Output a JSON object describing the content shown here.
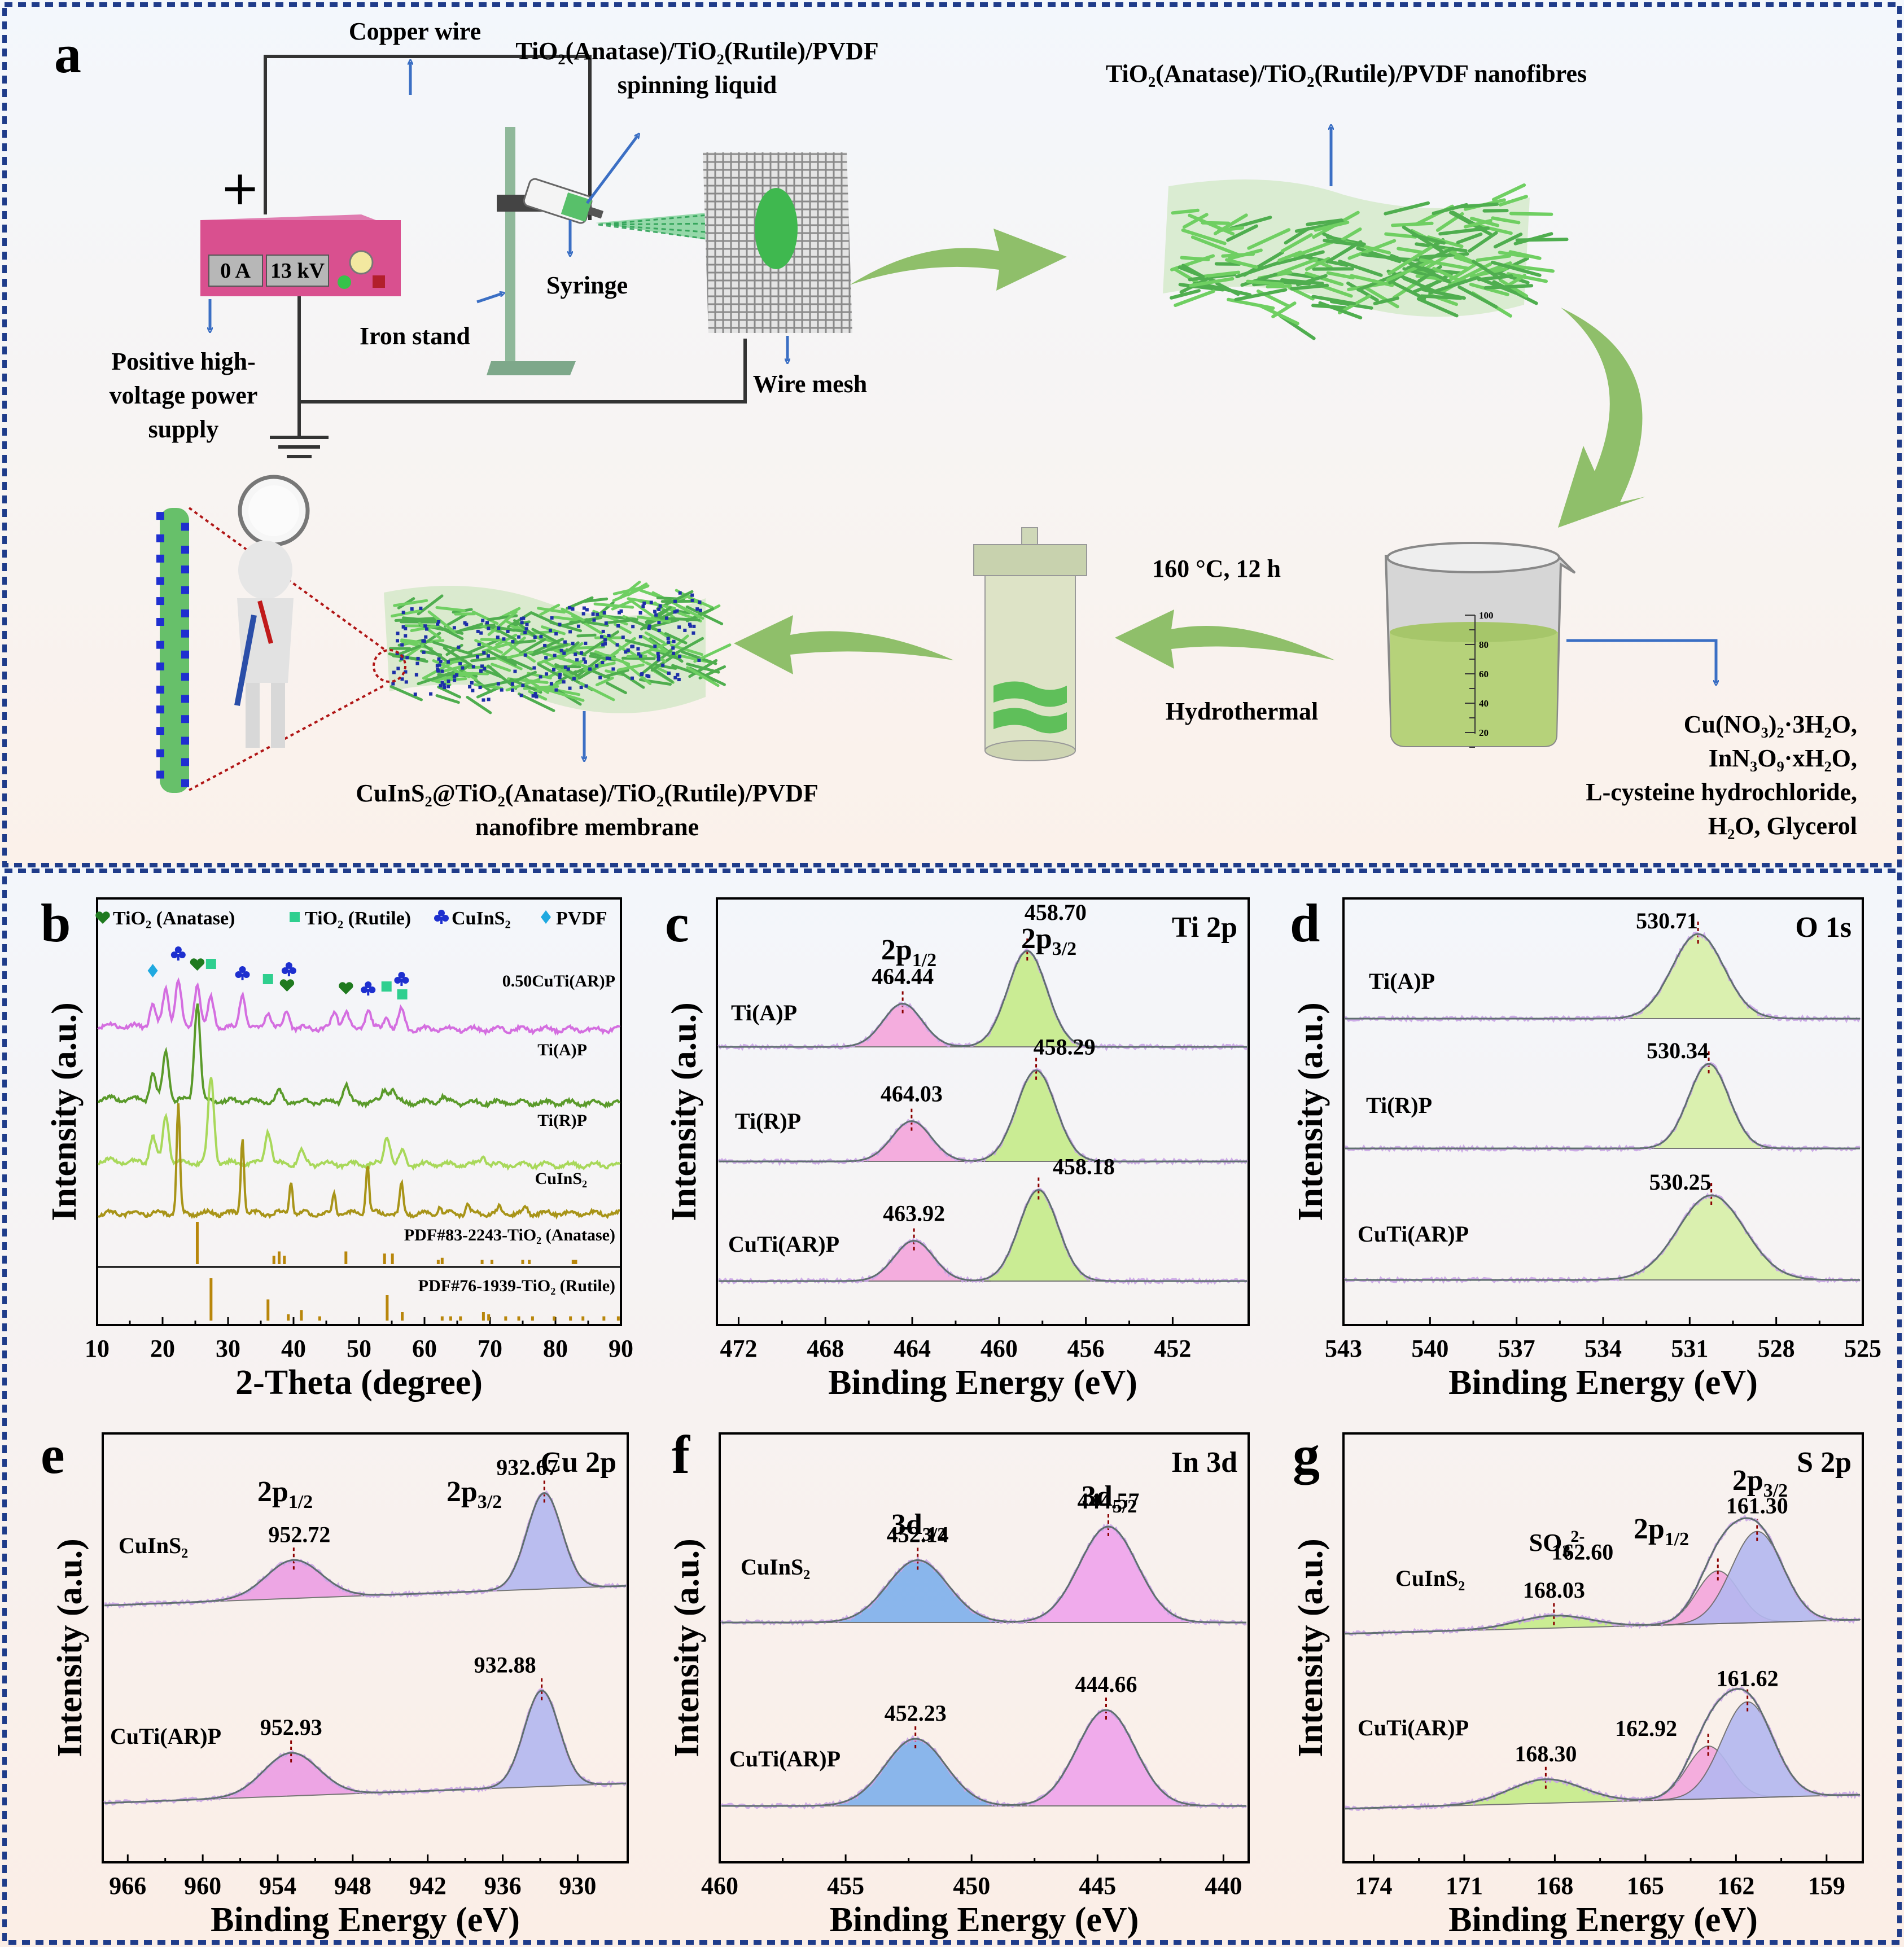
{
  "panel_a": {
    "letter": "a",
    "copper_wire": "Copper  wire",
    "spinning_liquid_l1": "TiO₂(Anatase)/TiO₂(Rutile)/PVDF",
    "spinning_liquid_l2": "spinning  liquid",
    "nanofibres": "TiO₂(Anatase)/TiO₂(Rutile)/PVDF nanofibres",
    "plus": "+",
    "current": "0 A",
    "voltage": "13 kV",
    "syringe": "Syringe",
    "iron_stand": "Iron stand",
    "wire_mesh": "Wire mesh",
    "power_l1": "Positive high-",
    "power_l2": "voltage power",
    "power_l3": "supply",
    "condition": "160 °C, 12 h",
    "hydrothermal": "Hydrothermal",
    "membrane_l1": "CuInS₂@TiO₂(Anatase)/TiO₂(Rutile)/PVDF",
    "membrane_l2": "nanofibre membrane",
    "reagents": [
      "Cu(NO₃)₂·3H₂O,",
      "InN₃O₉·xH₂O,",
      "L-cysteine hydrochloride,",
      "H₂O, Glycerol"
    ],
    "beaker_ticks": [
      "100",
      "80",
      "60",
      "40",
      "20"
    ],
    "colors": {
      "arrow_green": "#8fbf6a",
      "fiber": "#5fbf5a",
      "box": "#d9508f",
      "blue": "#3b6fc4"
    }
  },
  "chart_data": [
    {
      "panel": "b",
      "type": "line",
      "xlabel": "2-Theta (degree)",
      "ylabel": "Intensity (a.u.)",
      "xlim": [
        10,
        90
      ],
      "xticks": [
        "10",
        "20",
        "30",
        "40",
        "50",
        "60",
        "70",
        "80",
        "90"
      ],
      "legend": [
        "TiO₂ (Anatase)",
        "TiO₂ (Rutile)",
        "CuInS₂",
        "PVDF"
      ],
      "series": [
        {
          "name": "0.50CuTi(AR)P",
          "color": "#d46ee0",
          "peaks": [
            [
              18.5,
              0.5
            ],
            [
              20.5,
              0.9
            ],
            [
              22.4,
              1.1
            ],
            [
              25.3,
              1.0
            ],
            [
              27.4,
              0.7
            ],
            [
              32.2,
              0.8
            ],
            [
              36.1,
              0.4
            ],
            [
              39.0,
              0.4
            ],
            [
              46.3,
              0.4
            ],
            [
              48.0,
              0.4
            ],
            [
              51.4,
              0.45
            ],
            [
              54.2,
              0.3
            ],
            [
              56.5,
              0.45
            ]
          ]
        },
        {
          "name": "Ti(A)P",
          "color": "#5a9a2a",
          "peaks": [
            [
              18.5,
              0.6
            ],
            [
              20.5,
              1.2
            ],
            [
              25.3,
              2.3
            ],
            [
              37.8,
              0.25
            ],
            [
              48.0,
              0.4
            ],
            [
              53.9,
              0.3
            ],
            [
              55.1,
              0.3
            ],
            [
              62.7,
              0.15
            ]
          ]
        },
        {
          "name": "Ti(R)P",
          "color": "#a8d85a",
          "peaks": [
            [
              18.5,
              0.6
            ],
            [
              20.5,
              1.1
            ],
            [
              27.4,
              2.0
            ],
            [
              36.1,
              0.8
            ],
            [
              41.2,
              0.3
            ],
            [
              54.3,
              0.7
            ],
            [
              56.6,
              0.3
            ],
            [
              69.0,
              0.2
            ]
          ]
        },
        {
          "name": "CuInS₂",
          "color": "#a89418",
          "peaks": [
            [
              22.4,
              2.6
            ],
            [
              32.2,
              1.8
            ],
            [
              39.6,
              0.8
            ],
            [
              46.2,
              0.5
            ],
            [
              51.3,
              1.2
            ],
            [
              56.5,
              0.7
            ],
            [
              62.3,
              0.2
            ],
            [
              66.6,
              0.2
            ],
            [
              71.5,
              0.15
            ],
            [
              75.5,
              0.15
            ]
          ]
        }
      ],
      "reference": [
        {
          "name": "PDF#83-2243-TiO₂ (Anatase)",
          "color": "#b8860b",
          "lines": [
            [
              25.3,
              1.0
            ],
            [
              37.0,
              0.2
            ],
            [
              37.8,
              0.3
            ],
            [
              38.6,
              0.2
            ],
            [
              48.0,
              0.3
            ],
            [
              53.9,
              0.25
            ],
            [
              55.1,
              0.25
            ],
            [
              62.1,
              0.1
            ],
            [
              62.7,
              0.15
            ],
            [
              68.8,
              0.1
            ],
            [
              70.3,
              0.1
            ],
            [
              75.0,
              0.1
            ],
            [
              76.0,
              0.1
            ],
            [
              82.7,
              0.1
            ],
            [
              83.1,
              0.1
            ]
          ]
        },
        {
          "name": "PDF#76-1939-TiO₂ (Rutile)",
          "color": "#b8860b",
          "lines": [
            [
              27.4,
              1.0
            ],
            [
              36.1,
              0.5
            ],
            [
              39.2,
              0.15
            ],
            [
              41.2,
              0.25
            ],
            [
              44.0,
              0.1
            ],
            [
              54.3,
              0.6
            ],
            [
              56.6,
              0.2
            ],
            [
              62.7,
              0.1
            ],
            [
              64.0,
              0.1
            ],
            [
              65.5,
              0.1
            ],
            [
              69.0,
              0.2
            ],
            [
              69.8,
              0.15
            ],
            [
              72.4,
              0.1
            ],
            [
              74.4,
              0.1
            ],
            [
              76.5,
              0.1
            ],
            [
              79.8,
              0.1
            ],
            [
              82.3,
              0.1
            ],
            [
              84.2,
              0.1
            ],
            [
              87.4,
              0.1
            ],
            [
              89.6,
              0.1
            ]
          ]
        }
      ]
    },
    {
      "panel": "c",
      "type": "line",
      "title": "Ti 2p",
      "xlabel": "Binding Energy (eV)",
      "ylabel": "Intensity (a.u.)",
      "xlim": [
        473,
        448.5
      ],
      "xticks": [
        "472",
        "468",
        "464",
        "460",
        "456",
        "452"
      ],
      "series": [
        {
          "name": "Ti(A)P",
          "peaks": [
            {
              "label": "464.44",
              "center": 464.44,
              "h": 0.45,
              "fill": "#f4a6dc"
            },
            {
              "label": "458.70",
              "center": 458.7,
              "h": 1.0,
              "fill": "#c6ec8a"
            }
          ]
        },
        {
          "name": "Ti(R)P",
          "peaks": [
            {
              "label": "464.03",
              "center": 464.03,
              "h": 0.42,
              "fill": "#f4a6dc"
            },
            {
              "label": "458.29",
              "center": 458.29,
              "h": 0.95,
              "fill": "#c6ec8a"
            }
          ]
        },
        {
          "name": "CuTi(AR)P",
          "peaks": [
            {
              "label": "463.92",
              "center": 463.92,
              "h": 0.42,
              "fill": "#f4a6dc"
            },
            {
              "label": "458.18",
              "center": 458.18,
              "h": 0.95,
              "fill": "#c6ec8a"
            }
          ]
        }
      ],
      "annotations": [
        "2p1/2",
        "2p3/2"
      ]
    },
    {
      "panel": "d",
      "type": "line",
      "title": "O 1s",
      "xlabel": "Binding Energy (eV)",
      "ylabel": "Intensity (a.u.)",
      "xlim": [
        543,
        525
      ],
      "xticks": [
        "543",
        "540",
        "537",
        "534",
        "531",
        "528",
        "525"
      ],
      "series": [
        {
          "name": "Ti(A)P",
          "peaks": [
            {
              "label": "530.71",
              "center": 530.71,
              "h": 1.0,
              "fill": "#d8f0a8"
            }
          ]
        },
        {
          "name": "Ti(R)P",
          "peaks": [
            {
              "label": "530.34",
              "center": 530.34,
              "h": 1.0,
              "fill": "#d8f0a8"
            }
          ]
        },
        {
          "name": "CuTi(AR)P",
          "peaks": [
            {
              "label": "530.25",
              "center": 530.25,
              "h": 1.0,
              "fill": "#d8f0a8"
            }
          ]
        }
      ]
    },
    {
      "panel": "e",
      "type": "line",
      "title": "Cu 2p",
      "xlabel": "Binding Energy (eV)",
      "ylabel": "Intensity (a.u.)",
      "xlim": [
        968,
        926
      ],
      "xticks": [
        "966",
        "960",
        "954",
        "948",
        "942",
        "936",
        "930"
      ],
      "series": [
        {
          "name": "CuInS₂",
          "peaks": [
            {
              "label": "952.72",
              "center": 952.72,
              "h": 0.4,
              "fill": "#ec9ee4"
            },
            {
              "label": "932.67",
              "center": 932.67,
              "h": 1.0,
              "fill": "#b4b8f0"
            }
          ]
        },
        {
          "name": "CuTi(AR)P",
          "peaks": [
            {
              "label": "952.93",
              "center": 952.93,
              "h": 0.45,
              "fill": "#ec9ee4"
            },
            {
              "label": "932.88",
              "center": 932.88,
              "h": 1.0,
              "fill": "#b4b8f0"
            }
          ]
        }
      ],
      "annotations": [
        "2p1/2",
        "2p3/2"
      ]
    },
    {
      "panel": "f",
      "type": "line",
      "title": "In 3d",
      "xlabel": "Binding Energy (eV)",
      "ylabel": "Intensity (a.u.)",
      "xlim": [
        460,
        439
      ],
      "xticks": [
        "460",
        "455",
        "450",
        "445",
        "440"
      ],
      "series": [
        {
          "name": "CuInS₂",
          "peaks": [
            {
              "label": "452.14",
              "center": 452.14,
              "h": 0.65,
              "fill": "#7eb0ec"
            },
            {
              "label": "444.57",
              "center": 444.57,
              "h": 1.0,
              "fill": "#f0a4ec"
            }
          ]
        },
        {
          "name": "CuTi(AR)P",
          "peaks": [
            {
              "label": "452.23",
              "center": 452.23,
              "h": 0.7,
              "fill": "#7eb0ec"
            },
            {
              "label": "444.66",
              "center": 444.66,
              "h": 1.0,
              "fill": "#f0a4ec"
            }
          ]
        }
      ],
      "annotations": [
        "3d3/2",
        "3d5/2"
      ]
    },
    {
      "panel": "g",
      "type": "line",
      "title": "S 2p",
      "xlabel": "Binding Energy (eV)",
      "ylabel": "Intensity (a.u.)",
      "xlim": [
        175,
        157.8
      ],
      "xticks": [
        "174",
        "171",
        "168",
        "165",
        "162",
        "159"
      ],
      "series": [
        {
          "name": "CuInS₂",
          "peaks": [
            {
              "label": "168.03",
              "center": 168.03,
              "h": 0.13,
              "fill": "#c6ec8a"
            },
            {
              "label": "162.60",
              "center": 162.6,
              "h": 0.55,
              "fill": "#f4a6dc"
            },
            {
              "label": "161.30",
              "center": 161.3,
              "h": 0.95,
              "fill": "#b4b8f0"
            }
          ]
        },
        {
          "name": "CuTi(AR)P",
          "peaks": [
            {
              "label": "168.30",
              "center": 168.3,
              "h": 0.25,
              "fill": "#c6ec8a"
            },
            {
              "label": "162.92",
              "center": 162.92,
              "h": 0.55,
              "fill": "#f4a6dc"
            },
            {
              "label": "161.62",
              "center": 161.62,
              "h": 1.0,
              "fill": "#b4b8f0"
            }
          ]
        }
      ],
      "annotations": [
        "SO32-",
        "2p1/2",
        "2p3/2"
      ]
    }
  ]
}
